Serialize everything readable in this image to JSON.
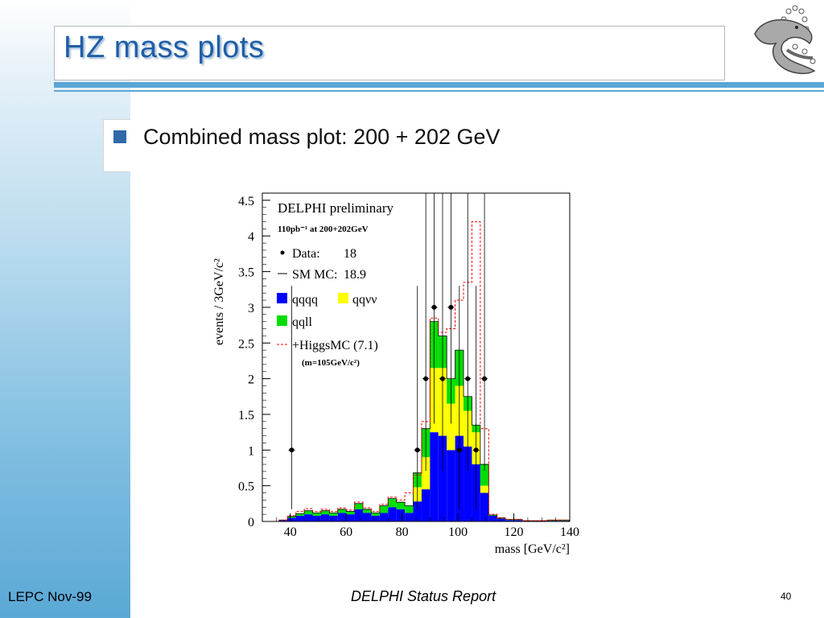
{
  "slide": {
    "title": "HZ mass plots",
    "bullet": "Combined mass plot: 200 + 202 GeV",
    "footer_left": "LEPC Nov-99",
    "footer_center": "DELPHI Status Report",
    "page_number": "40"
  },
  "colors": {
    "title": "#1f5ea8",
    "accent_rule": "#5aa7d6",
    "bullet": "#2f69a8",
    "qqqq": "#0000ff",
    "qqvv": "#ffff00",
    "qqll": "#00dd00",
    "higgs": "#ff0000"
  },
  "icons": {
    "logo": "delphi-dolphin-logo"
  },
  "chart_data": {
    "type": "bar",
    "xlabel": "mass [GeV/c²]",
    "ylabel": "events / 3GeV/c²",
    "xlim": [
      30,
      140
    ],
    "ylim": [
      0,
      4.6
    ],
    "xticks": [
      "40",
      "60",
      "80",
      "100",
      "120",
      "140"
    ],
    "yticks": [
      "0",
      "0.5",
      "1",
      "1.5",
      "2",
      "2.5",
      "3",
      "3.5",
      "4",
      "4.5"
    ],
    "legend": {
      "header": "DELPHI preliminary",
      "lumi": "110pb⁻¹ at 200+202GeV",
      "data_label": "Data:",
      "data_value": "18",
      "mc_label": "SM MC:",
      "mc_value": "18.9",
      "qqqq": "qqqq",
      "qqvv": "qqνν",
      "qqll": "qqll",
      "higgs": "+HiggsMC (7.1)",
      "higgs_mass": "(m=105GeV/c²)"
    },
    "bin_edges": [
      30,
      33,
      36,
      39,
      42,
      45,
      48,
      51,
      54,
      57,
      60,
      63,
      66,
      69,
      72,
      75,
      78,
      81,
      84,
      87,
      90,
      93,
      96,
      99,
      102,
      105,
      108,
      111,
      114,
      117,
      120,
      123,
      126,
      129,
      132,
      135,
      138,
      141
    ],
    "series": [
      {
        "name": "qqqq",
        "values": [
          0,
          0,
          0.02,
          0.05,
          0.08,
          0.1,
          0.08,
          0.1,
          0.08,
          0.12,
          0.1,
          0.17,
          0.12,
          0.08,
          0.12,
          0.2,
          0.17,
          0.12,
          0.28,
          0.45,
          1.25,
          1.2,
          1.0,
          1.2,
          1.05,
          0.8,
          0.4,
          0.08,
          0.04,
          0.02,
          0.02,
          0.01,
          0.01,
          0.01,
          0.01,
          0.01,
          0.01
        ]
      },
      {
        "name": "qqvv",
        "values": [
          0,
          0,
          0,
          0,
          0,
          0,
          0,
          0,
          0,
          0,
          0,
          0,
          0,
          0,
          0,
          0,
          0,
          0,
          0.2,
          0.45,
          0.9,
          0.95,
          0.65,
          0.7,
          0.5,
          0.45,
          0.1,
          0,
          0,
          0,
          0,
          0,
          0,
          0,
          0,
          0,
          0
        ]
      },
      {
        "name": "qqll",
        "values": [
          0,
          0,
          0,
          0.02,
          0.03,
          0.05,
          0.04,
          0.05,
          0.04,
          0.05,
          0.04,
          0.08,
          0.05,
          0.04,
          0.1,
          0.12,
          0.1,
          0.1,
          0.2,
          0.4,
          0.65,
          0.45,
          0.35,
          0.5,
          0.2,
          0.1,
          0.3,
          0.01,
          0.01,
          0.01,
          0.01,
          0,
          0,
          0,
          0.01,
          0.01,
          0.01
        ]
      }
    ],
    "higgs_total": [
      0,
      0,
      0.02,
      0.08,
      0.14,
      0.18,
      0.14,
      0.17,
      0.14,
      0.19,
      0.16,
      0.27,
      0.19,
      0.14,
      0.24,
      0.34,
      0.3,
      0.4,
      0.65,
      1.4,
      2.85,
      2.65,
      2.7,
      3.1,
      3.35,
      4.2,
      1.3,
      0.1,
      0.05,
      0.03,
      0.03,
      0.01,
      0.01,
      0.01,
      0.02,
      0.02,
      0.02
    ],
    "data_points": [
      {
        "x": 40.5,
        "y": 1,
        "yerr_lo": 0.83,
        "yerr_hi": 2.3
      },
      {
        "x": 85.5,
        "y": 1,
        "yerr_lo": 0.83,
        "yerr_hi": 2.3
      },
      {
        "x": 88.5,
        "y": 2,
        "yerr_lo": 1.29,
        "yerr_hi": 2.64
      },
      {
        "x": 91.5,
        "y": 3,
        "yerr_lo": 1.63,
        "yerr_hi": 2.92
      },
      {
        "x": 94.5,
        "y": 2,
        "yerr_lo": 1.29,
        "yerr_hi": 2.64
      },
      {
        "x": 97.5,
        "y": 3,
        "yerr_lo": 1.63,
        "yerr_hi": 2.92
      },
      {
        "x": 100.5,
        "y": 1,
        "yerr_lo": 0.83,
        "yerr_hi": 2.3
      },
      {
        "x": 103.5,
        "y": 2,
        "yerr_lo": 1.29,
        "yerr_hi": 2.64
      },
      {
        "x": 106.5,
        "y": 1,
        "yerr_lo": 0.83,
        "yerr_hi": 2.3
      },
      {
        "x": 109.5,
        "y": 2,
        "yerr_lo": 1.29,
        "yerr_hi": 2.64
      }
    ]
  }
}
